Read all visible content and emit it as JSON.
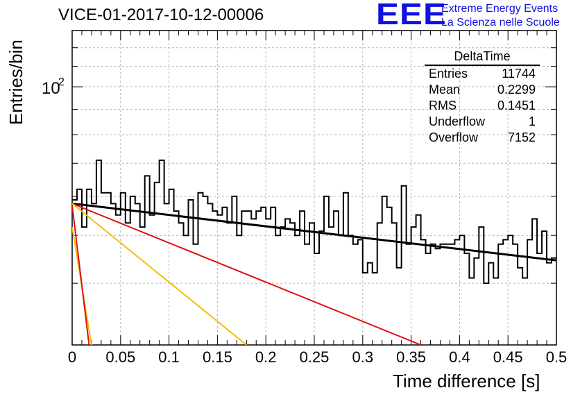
{
  "header": {
    "title": "VICE-01-2017-10-12-00006",
    "logo": "EEE",
    "logo_line1": "Extreme Energy Events",
    "logo_line2": "La Scienza nelle Scuole"
  },
  "stats": {
    "title": "DeltaTime",
    "rows": [
      {
        "label": "Entries",
        "value": "11744"
      },
      {
        "label": "Mean",
        "value": "0.2299"
      },
      {
        "label": "RMS",
        "value": "0.1451"
      },
      {
        "label": "Underflow",
        "value": "1"
      },
      {
        "label": "Overflow",
        "value": "7152"
      }
    ]
  },
  "chart_data": {
    "type": "line",
    "xlabel": "Time difference [s]",
    "ylabel": "Entries/bin",
    "xlim": [
      0,
      0.5
    ],
    "ylim": [
      30,
      130
    ],
    "ylog": true,
    "grid": true,
    "x_ticks": [
      "0",
      "0.05",
      "0.1",
      "0.15",
      "0.2",
      "0.25",
      "0.3",
      "0.35",
      "0.4",
      "0.45",
      "0.5"
    ],
    "y_tick_label": "10",
    "y_tick_exp": "2",
    "histogram": {
      "bin_width": 0.005,
      "values": [
        59,
        62,
        52,
        62,
        58,
        71,
        61,
        61,
        58,
        55,
        61,
        53,
        60,
        58,
        52,
        66,
        55,
        64,
        71,
        58,
        62,
        56,
        53,
        50,
        59,
        48,
        61,
        60,
        58,
        56,
        55,
        57,
        53,
        60,
        50,
        56,
        56,
        54,
        56,
        57,
        54,
        57,
        50,
        52,
        54,
        53,
        50,
        56,
        48,
        53,
        46,
        51,
        60,
        52,
        56,
        50,
        61,
        50,
        48,
        49,
        42,
        44,
        42,
        53,
        60,
        57,
        53,
        43,
        63,
        48,
        52,
        55,
        49,
        46,
        48,
        47,
        48,
        48,
        48,
        49,
        50,
        46,
        41,
        45,
        52,
        40,
        44,
        41,
        48,
        49,
        50,
        48,
        43,
        41,
        49,
        54,
        46,
        51,
        44,
        45
      ],
      "color": "#000000"
    },
    "fits": [
      {
        "x0": 0.0,
        "y0": 58.0,
        "x1": 0.5,
        "y1": 44.5,
        "color": "#000000"
      },
      {
        "x0": 0.0,
        "y0": 58.0,
        "x1": 0.36,
        "y1": 30.0,
        "color": "#e01010"
      },
      {
        "x0": 0.0,
        "y0": 58.0,
        "x1": 0.18,
        "y1": 30.0,
        "color": "#f0c000"
      },
      {
        "x0": 0.0,
        "y0": 52.0,
        "x1": 0.02,
        "y1": 30.0,
        "color": "#f0c000"
      },
      {
        "x0": 0.0,
        "y0": 57.5,
        "x1": 0.0175,
        "y1": 30.0,
        "color": "#e01010"
      }
    ]
  }
}
